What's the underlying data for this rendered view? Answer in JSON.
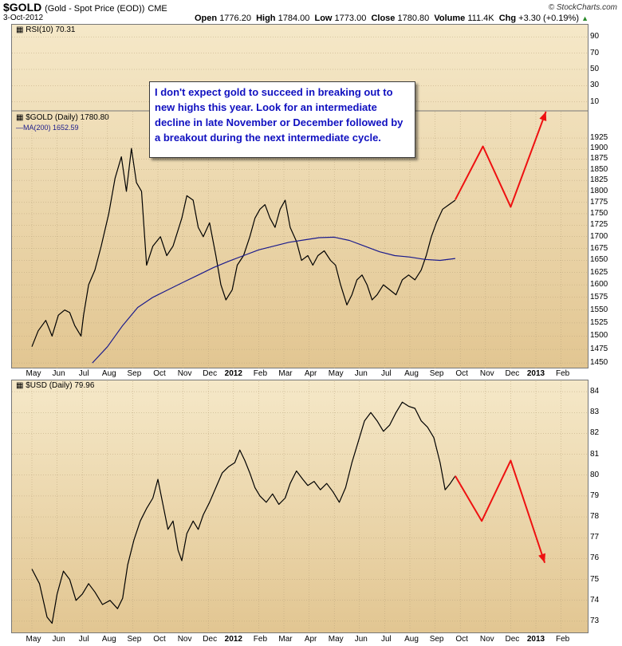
{
  "header": {
    "symbol": "$GOLD",
    "description": "(Gold - Spot Price (EOD))",
    "exchange": "CME",
    "date": "3-Oct-2012",
    "credit": "© StockCharts.com",
    "open_label": "Open",
    "open": "1776.20",
    "high_label": "High",
    "high": "1784.00",
    "low_label": "Low",
    "low": "1773.00",
    "close_label": "Close",
    "close": "1780.80",
    "volume_label": "Volume",
    "volume": "111.4K",
    "chg_label": "Chg",
    "chg": "+3.30 (+0.19%)"
  },
  "rsi_legend": "RSI(10) 70.31",
  "gold_legend": "$GOLD (Daily) 1780.80",
  "ma_legend": "MA(200) 1652.59",
  "usd_legend": "$USD (Daily) 79.96",
  "annotation": "I don't expect gold to succeed in breaking out to new highs this year. Look for an intermediate decline in late November or December followed by a breakout during the next intermediate cycle.",
  "colors": {
    "price": "#000000",
    "ma": "#1a1a8c",
    "projection": "#ee1111",
    "annotation_text": "#1010c0",
    "panel_top": "#f5e8c8",
    "panel_bottom": "#e2c692"
  },
  "x_labels": [
    "May",
    "Jun",
    "Jul",
    "Aug",
    "Sep",
    "Oct",
    "Nov",
    "Dec",
    "2012",
    "Feb",
    "Mar",
    "Apr",
    "May",
    "Jun",
    "Jul",
    "Aug",
    "Sep",
    "Oct",
    "Nov",
    "Dec",
    "2013",
    "Feb"
  ],
  "chart_data": [
    {
      "type": "line",
      "title": "$GOLD (Daily)",
      "scale": "log",
      "ylim": [
        1440,
        1990
      ],
      "y_ticks": [
        1450,
        1475,
        1500,
        1525,
        1550,
        1575,
        1600,
        1625,
        1650,
        1675,
        1700,
        1725,
        1750,
        1775,
        1800,
        1825,
        1850,
        1875,
        1900,
        1925
      ],
      "x_months": [
        "May",
        "Jun",
        "Jul",
        "Aug",
        "Sep",
        "Oct",
        "Nov",
        "Dec",
        "2012",
        "Feb",
        "Mar",
        "Apr",
        "May",
        "Jun",
        "Jul",
        "Aug",
        "Sep",
        "Oct",
        "Nov",
        "Dec",
        "2013",
        "Feb"
      ],
      "series": [
        {
          "name": "$GOLD (Daily)",
          "points": [
            [
              0,
              1480
            ],
            [
              0.25,
              1510
            ],
            [
              0.55,
              1530
            ],
            [
              0.8,
              1500
            ],
            [
              1.05,
              1540
            ],
            [
              1.3,
              1550
            ],
            [
              1.5,
              1545
            ],
            [
              1.7,
              1520
            ],
            [
              1.95,
              1500
            ],
            [
              2.05,
              1540
            ],
            [
              2.25,
              1600
            ],
            [
              2.5,
              1630
            ],
            [
              2.75,
              1680
            ],
            [
              3.05,
              1750
            ],
            [
              3.3,
              1830
            ],
            [
              3.55,
              1880
            ],
            [
              3.75,
              1800
            ],
            [
              3.95,
              1900
            ],
            [
              4.15,
              1820
            ],
            [
              4.35,
              1800
            ],
            [
              4.55,
              1640
            ],
            [
              4.8,
              1680
            ],
            [
              5.1,
              1700
            ],
            [
              5.35,
              1660
            ],
            [
              5.6,
              1680
            ],
            [
              5.95,
              1740
            ],
            [
              6.15,
              1790
            ],
            [
              6.4,
              1780
            ],
            [
              6.6,
              1720
            ],
            [
              6.8,
              1700
            ],
            [
              7.05,
              1730
            ],
            [
              7.3,
              1660
            ],
            [
              7.5,
              1600
            ],
            [
              7.7,
              1570
            ],
            [
              7.95,
              1590
            ],
            [
              8.15,
              1640
            ],
            [
              8.4,
              1660
            ],
            [
              8.65,
              1700
            ],
            [
              8.85,
              1740
            ],
            [
              9.05,
              1760
            ],
            [
              9.25,
              1770
            ],
            [
              9.45,
              1740
            ],
            [
              9.65,
              1720
            ],
            [
              9.85,
              1760
            ],
            [
              10.05,
              1780
            ],
            [
              10.25,
              1720
            ],
            [
              10.5,
              1690
            ],
            [
              10.7,
              1650
            ],
            [
              10.95,
              1660
            ],
            [
              11.15,
              1640
            ],
            [
              11.35,
              1660
            ],
            [
              11.6,
              1670
            ],
            [
              11.85,
              1650
            ],
            [
              12.05,
              1640
            ],
            [
              12.25,
              1600
            ],
            [
              12.5,
              1560
            ],
            [
              12.7,
              1580
            ],
            [
              12.9,
              1610
            ],
            [
              13.1,
              1620
            ],
            [
              13.3,
              1600
            ],
            [
              13.5,
              1570
            ],
            [
              13.7,
              1580
            ],
            [
              13.95,
              1600
            ],
            [
              14.2,
              1590
            ],
            [
              14.45,
              1580
            ],
            [
              14.7,
              1610
            ],
            [
              14.95,
              1620
            ],
            [
              15.2,
              1610
            ],
            [
              15.45,
              1630
            ],
            [
              15.65,
              1660
            ],
            [
              15.85,
              1700
            ],
            [
              16.05,
              1730
            ],
            [
              16.3,
              1760
            ],
            [
              16.55,
              1770
            ],
            [
              16.8,
              1780
            ]
          ]
        },
        {
          "name": "MA(200)",
          "points": [
            [
              2.4,
              1450
            ],
            [
              3,
              1480
            ],
            [
              3.6,
              1520
            ],
            [
              4.2,
              1555
            ],
            [
              4.8,
              1575
            ],
            [
              5.4,
              1590
            ],
            [
              6,
              1605
            ],
            [
              6.6,
              1620
            ],
            [
              7.2,
              1635
            ],
            [
              7.8,
              1648
            ],
            [
              8.4,
              1660
            ],
            [
              9,
              1672
            ],
            [
              9.6,
              1680
            ],
            [
              10.2,
              1688
            ],
            [
              10.8,
              1693
            ],
            [
              11.4,
              1698
            ],
            [
              12,
              1699
            ],
            [
              12.6,
              1692
            ],
            [
              13.2,
              1680
            ],
            [
              13.8,
              1668
            ],
            [
              14.4,
              1660
            ],
            [
              15,
              1657
            ],
            [
              15.6,
              1652
            ],
            [
              16.2,
              1650
            ],
            [
              16.8,
              1654
            ]
          ]
        },
        {
          "name": "projection",
          "points": [
            [
              16.8,
              1781
            ],
            [
              17.9,
              1905
            ],
            [
              19.0,
              1765
            ],
            [
              20.4,
              1990
            ]
          ]
        }
      ],
      "rsi": {
        "name": "RSI(10)",
        "value": 70.31,
        "y_ticks": [
          90,
          70,
          50,
          30,
          10
        ]
      }
    },
    {
      "type": "line",
      "title": "$USD (Daily)",
      "ylim": [
        72.5,
        84.5
      ],
      "y_ticks": [
        73,
        74,
        75,
        76,
        77,
        78,
        79,
        80,
        81,
        82,
        83,
        84
      ],
      "x_months": [
        "May",
        "Jun",
        "Jul",
        "Aug",
        "Sep",
        "Oct",
        "Nov",
        "Dec",
        "2012",
        "Feb",
        "Mar",
        "Apr",
        "May",
        "Jun",
        "Jul",
        "Aug",
        "Sep",
        "Oct",
        "Nov",
        "Dec",
        "2013",
        "Feb"
      ],
      "series": [
        {
          "name": "$USD (Daily)",
          "points": [
            [
              0,
              75.5
            ],
            [
              0.3,
              74.8
            ],
            [
              0.6,
              73.2
            ],
            [
              0.8,
              72.9
            ],
            [
              1.0,
              74.3
            ],
            [
              1.25,
              75.4
            ],
            [
              1.5,
              75.0
            ],
            [
              1.75,
              74.0
            ],
            [
              2.0,
              74.3
            ],
            [
              2.25,
              74.8
            ],
            [
              2.5,
              74.4
            ],
            [
              2.8,
              73.8
            ],
            [
              3.1,
              74.0
            ],
            [
              3.4,
              73.6
            ],
            [
              3.6,
              74.1
            ],
            [
              3.8,
              75.7
            ],
            [
              4.05,
              76.9
            ],
            [
              4.3,
              77.8
            ],
            [
              4.55,
              78.4
            ],
            [
              4.8,
              78.9
            ],
            [
              5.0,
              79.8
            ],
            [
              5.2,
              78.6
            ],
            [
              5.4,
              77.4
            ],
            [
              5.6,
              77.8
            ],
            [
              5.8,
              76.4
            ],
            [
              5.95,
              75.9
            ],
            [
              6.15,
              77.2
            ],
            [
              6.4,
              77.8
            ],
            [
              6.6,
              77.4
            ],
            [
              6.8,
              78.1
            ],
            [
              7.05,
              78.7
            ],
            [
              7.3,
              79.4
            ],
            [
              7.55,
              80.1
            ],
            [
              7.8,
              80.4
            ],
            [
              8.05,
              80.6
            ],
            [
              8.25,
              81.2
            ],
            [
              8.45,
              80.7
            ],
            [
              8.65,
              80.1
            ],
            [
              8.85,
              79.4
            ],
            [
              9.05,
              79.0
            ],
            [
              9.3,
              78.7
            ],
            [
              9.55,
              79.1
            ],
            [
              9.8,
              78.6
            ],
            [
              10.05,
              78.9
            ],
            [
              10.25,
              79.6
            ],
            [
              10.5,
              80.2
            ],
            [
              10.75,
              79.8
            ],
            [
              10.95,
              79.5
            ],
            [
              11.2,
              79.7
            ],
            [
              11.45,
              79.3
            ],
            [
              11.7,
              79.6
            ],
            [
              11.95,
              79.2
            ],
            [
              12.2,
              78.7
            ],
            [
              12.45,
              79.4
            ],
            [
              12.7,
              80.6
            ],
            [
              12.95,
              81.6
            ],
            [
              13.2,
              82.6
            ],
            [
              13.45,
              83.0
            ],
            [
              13.7,
              82.6
            ],
            [
              13.95,
              82.1
            ],
            [
              14.2,
              82.4
            ],
            [
              14.45,
              83.0
            ],
            [
              14.7,
              83.5
            ],
            [
              14.95,
              83.3
            ],
            [
              15.2,
              83.2
            ],
            [
              15.45,
              82.6
            ],
            [
              15.7,
              82.3
            ],
            [
              15.95,
              81.8
            ],
            [
              16.2,
              80.6
            ],
            [
              16.4,
              79.3
            ],
            [
              16.6,
              79.6
            ],
            [
              16.8,
              79.96
            ]
          ]
        },
        {
          "name": "projection",
          "points": [
            [
              16.8,
              79.96
            ],
            [
              17.85,
              77.8
            ],
            [
              19.0,
              80.7
            ],
            [
              20.35,
              75.8
            ]
          ]
        }
      ]
    }
  ]
}
